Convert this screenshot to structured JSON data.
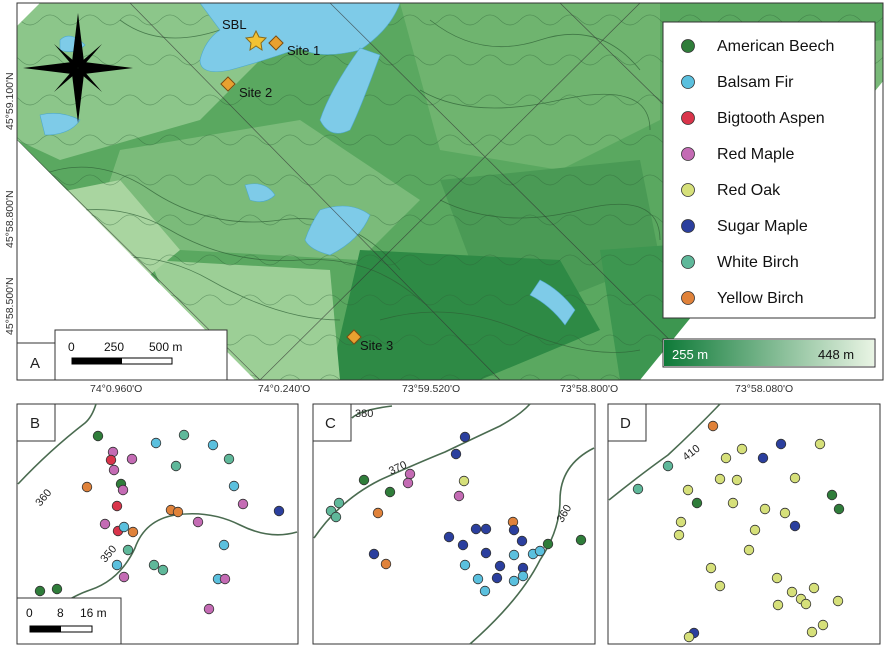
{
  "panel_a": {
    "letter": "A",
    "legend": {
      "items": [
        {
          "label": "American Beech",
          "color": "#2f7d3a"
        },
        {
          "label": "Balsam Fir",
          "color": "#5bc0de"
        },
        {
          "label": "Bigtooth Aspen",
          "color": "#d9344a"
        },
        {
          "label": "Red Maple",
          "color": "#c46bb4"
        },
        {
          "label": "Red Oak",
          "color": "#d6e07a"
        },
        {
          "label": "Sugar Maple",
          "color": "#2b3f9e"
        },
        {
          "label": "White Birch",
          "color": "#5fb89a"
        },
        {
          "label": "Yellow Birch",
          "color": "#e0823a"
        }
      ]
    },
    "elevation": {
      "min_label": "255 m",
      "max_label": "448 m"
    },
    "scale_bar": {
      "labels": [
        "0",
        "250",
        "500 m"
      ]
    },
    "sites": [
      {
        "label": "SBL",
        "marker": "star"
      },
      {
        "label": "Site 1",
        "marker": "diamond"
      },
      {
        "label": "Site 2",
        "marker": "diamond"
      },
      {
        "label": "Site 3",
        "marker": "diamond"
      }
    ],
    "lon_labels": [
      "74°0.960'O",
      "74°0.240'O",
      "73°59.520'O",
      "73°58.800'O",
      "73°58.080'O"
    ],
    "lat_labels": [
      "45°59.100'N",
      "45°58.800'N",
      "45°58.500'N"
    ]
  },
  "panel_b": {
    "letter": "B",
    "contours": [
      "360",
      "350"
    ],
    "scale_bar": {
      "labels": [
        "0",
        "8",
        "16 m"
      ]
    },
    "trees": [
      {
        "sp": "American Beech",
        "x": 98,
        "y": 436
      },
      {
        "sp": "Balsam Fir",
        "x": 156,
        "y": 443
      },
      {
        "sp": "White Birch",
        "x": 184,
        "y": 435
      },
      {
        "sp": "Balsam Fir",
        "x": 213,
        "y": 445
      },
      {
        "sp": "Red Maple",
        "x": 113,
        "y": 452
      },
      {
        "sp": "Bigtooth Aspen",
        "x": 111,
        "y": 460
      },
      {
        "sp": "Red Maple",
        "x": 132,
        "y": 459
      },
      {
        "sp": "White Birch",
        "x": 229,
        "y": 459
      },
      {
        "sp": "Red Maple",
        "x": 114,
        "y": 470
      },
      {
        "sp": "White Birch",
        "x": 176,
        "y": 466
      },
      {
        "sp": "American Beech",
        "x": 121,
        "y": 484
      },
      {
        "sp": "Yellow Birch",
        "x": 87,
        "y": 487
      },
      {
        "sp": "Red Maple",
        "x": 123,
        "y": 490
      },
      {
        "sp": "Balsam Fir",
        "x": 234,
        "y": 486
      },
      {
        "sp": "Bigtooth Aspen",
        "x": 117,
        "y": 506
      },
      {
        "sp": "Red Maple",
        "x": 243,
        "y": 504
      },
      {
        "sp": "Yellow Birch",
        "x": 171,
        "y": 510
      },
      {
        "sp": "Yellow Birch",
        "x": 178,
        "y": 512
      },
      {
        "sp": "Sugar Maple",
        "x": 279,
        "y": 511
      },
      {
        "sp": "Red Maple",
        "x": 105,
        "y": 524
      },
      {
        "sp": "Bigtooth Aspen",
        "x": 118,
        "y": 531
      },
      {
        "sp": "Balsam Fir",
        "x": 124,
        "y": 527
      },
      {
        "sp": "Yellow Birch",
        "x": 133,
        "y": 532
      },
      {
        "sp": "Red Maple",
        "x": 198,
        "y": 522
      },
      {
        "sp": "Balsam Fir",
        "x": 224,
        "y": 545
      },
      {
        "sp": "White Birch",
        "x": 128,
        "y": 550
      },
      {
        "sp": "Balsam Fir",
        "x": 117,
        "y": 565
      },
      {
        "sp": "White Birch",
        "x": 154,
        "y": 565
      },
      {
        "sp": "White Birch",
        "x": 163,
        "y": 570
      },
      {
        "sp": "Red Maple",
        "x": 124,
        "y": 577
      },
      {
        "sp": "Balsam Fir",
        "x": 218,
        "y": 579
      },
      {
        "sp": "Red Maple",
        "x": 225,
        "y": 579
      },
      {
        "sp": "Red Maple",
        "x": 209,
        "y": 609
      },
      {
        "sp": "American Beech",
        "x": 40,
        "y": 591
      },
      {
        "sp": "American Beech",
        "x": 57,
        "y": 589
      }
    ]
  },
  "panel_c": {
    "letter": "C",
    "contours": [
      "380",
      "370",
      "360"
    ],
    "trees": [
      {
        "sp": "Sugar Maple",
        "x": 465,
        "y": 437
      },
      {
        "sp": "Sugar Maple",
        "x": 456,
        "y": 454
      },
      {
        "sp": "Red Maple",
        "x": 410,
        "y": 474
      },
      {
        "sp": "Red Maple",
        "x": 408,
        "y": 483
      },
      {
        "sp": "Red Oak",
        "x": 464,
        "y": 481
      },
      {
        "sp": "American Beech",
        "x": 364,
        "y": 480
      },
      {
        "sp": "American Beech",
        "x": 390,
        "y": 492
      },
      {
        "sp": "Red Maple",
        "x": 459,
        "y": 496
      },
      {
        "sp": "White Birch",
        "x": 339,
        "y": 503
      },
      {
        "sp": "White Birch",
        "x": 331,
        "y": 511
      },
      {
        "sp": "White Birch",
        "x": 336,
        "y": 517
      },
      {
        "sp": "Yellow Birch",
        "x": 378,
        "y": 513
      },
      {
        "sp": "Sugar Maple",
        "x": 476,
        "y": 529
      },
      {
        "sp": "Sugar Maple",
        "x": 486,
        "y": 529
      },
      {
        "sp": "Sugar Maple",
        "x": 449,
        "y": 537
      },
      {
        "sp": "Yellow Birch",
        "x": 513,
        "y": 522
      },
      {
        "sp": "Sugar Maple",
        "x": 514,
        "y": 530
      },
      {
        "sp": "Sugar Maple",
        "x": 463,
        "y": 545
      },
      {
        "sp": "Sugar Maple",
        "x": 522,
        "y": 541
      },
      {
        "sp": "Sugar Maple",
        "x": 486,
        "y": 553
      },
      {
        "sp": "Balsam Fir",
        "x": 514,
        "y": 555
      },
      {
        "sp": "Balsam Fir",
        "x": 533,
        "y": 554
      },
      {
        "sp": "Balsam Fir",
        "x": 540,
        "y": 551
      },
      {
        "sp": "American Beech",
        "x": 548,
        "y": 544
      },
      {
        "sp": "American Beech",
        "x": 581,
        "y": 540
      },
      {
        "sp": "Sugar Maple",
        "x": 374,
        "y": 554
      },
      {
        "sp": "Yellow Birch",
        "x": 386,
        "y": 564
      },
      {
        "sp": "Balsam Fir",
        "x": 465,
        "y": 565
      },
      {
        "sp": "Sugar Maple",
        "x": 500,
        "y": 566
      },
      {
        "sp": "Sugar Maple",
        "x": 523,
        "y": 568
      },
      {
        "sp": "Balsam Fir",
        "x": 478,
        "y": 579
      },
      {
        "sp": "Sugar Maple",
        "x": 497,
        "y": 578
      },
      {
        "sp": "Balsam Fir",
        "x": 514,
        "y": 581
      },
      {
        "sp": "Balsam Fir",
        "x": 523,
        "y": 576
      },
      {
        "sp": "Balsam Fir",
        "x": 485,
        "y": 591
      }
    ]
  },
  "panel_d": {
    "letter": "D",
    "contours": [
      "410"
    ],
    "trees": [
      {
        "sp": "Yellow Birch",
        "x": 713,
        "y": 426
      },
      {
        "sp": "Sugar Maple",
        "x": 781,
        "y": 444
      },
      {
        "sp": "Red Oak",
        "x": 820,
        "y": 444
      },
      {
        "sp": "Red Oak",
        "x": 742,
        "y": 449
      },
      {
        "sp": "Red Oak",
        "x": 726,
        "y": 458
      },
      {
        "sp": "Sugar Maple",
        "x": 763,
        "y": 458
      },
      {
        "sp": "White Birch",
        "x": 668,
        "y": 466
      },
      {
        "sp": "Red Oak",
        "x": 720,
        "y": 479
      },
      {
        "sp": "Red Oak",
        "x": 688,
        "y": 490
      },
      {
        "sp": "White Birch",
        "x": 638,
        "y": 489
      },
      {
        "sp": "Red Oak",
        "x": 737,
        "y": 480
      },
      {
        "sp": "Red Oak",
        "x": 795,
        "y": 478
      },
      {
        "sp": "American Beech",
        "x": 697,
        "y": 503
      },
      {
        "sp": "Red Oak",
        "x": 733,
        "y": 503
      },
      {
        "sp": "Red Oak",
        "x": 765,
        "y": 509
      },
      {
        "sp": "Red Oak",
        "x": 785,
        "y": 513
      },
      {
        "sp": "American Beech",
        "x": 832,
        "y": 495
      },
      {
        "sp": "American Beech",
        "x": 839,
        "y": 509
      },
      {
        "sp": "Red Oak",
        "x": 681,
        "y": 522
      },
      {
        "sp": "Red Oak",
        "x": 679,
        "y": 535
      },
      {
        "sp": "Red Oak",
        "x": 755,
        "y": 530
      },
      {
        "sp": "Sugar Maple",
        "x": 795,
        "y": 526
      },
      {
        "sp": "Red Oak",
        "x": 749,
        "y": 550
      },
      {
        "sp": "Red Oak",
        "x": 711,
        "y": 568
      },
      {
        "sp": "Red Oak",
        "x": 720,
        "y": 586
      },
      {
        "sp": "Red Oak",
        "x": 777,
        "y": 578
      },
      {
        "sp": "Red Oak",
        "x": 792,
        "y": 592
      },
      {
        "sp": "Red Oak",
        "x": 814,
        "y": 588
      },
      {
        "sp": "Red Oak",
        "x": 801,
        "y": 599
      },
      {
        "sp": "Red Oak",
        "x": 806,
        "y": 604
      },
      {
        "sp": "Red Oak",
        "x": 778,
        "y": 605
      },
      {
        "sp": "Red Oak",
        "x": 838,
        "y": 601
      },
      {
        "sp": "Red Oak",
        "x": 823,
        "y": 625
      },
      {
        "sp": "Red Oak",
        "x": 812,
        "y": 632
      },
      {
        "sp": "Sugar Maple",
        "x": 694,
        "y": 633
      },
      {
        "sp": "Red Oak",
        "x": 689,
        "y": 637
      }
    ]
  }
}
